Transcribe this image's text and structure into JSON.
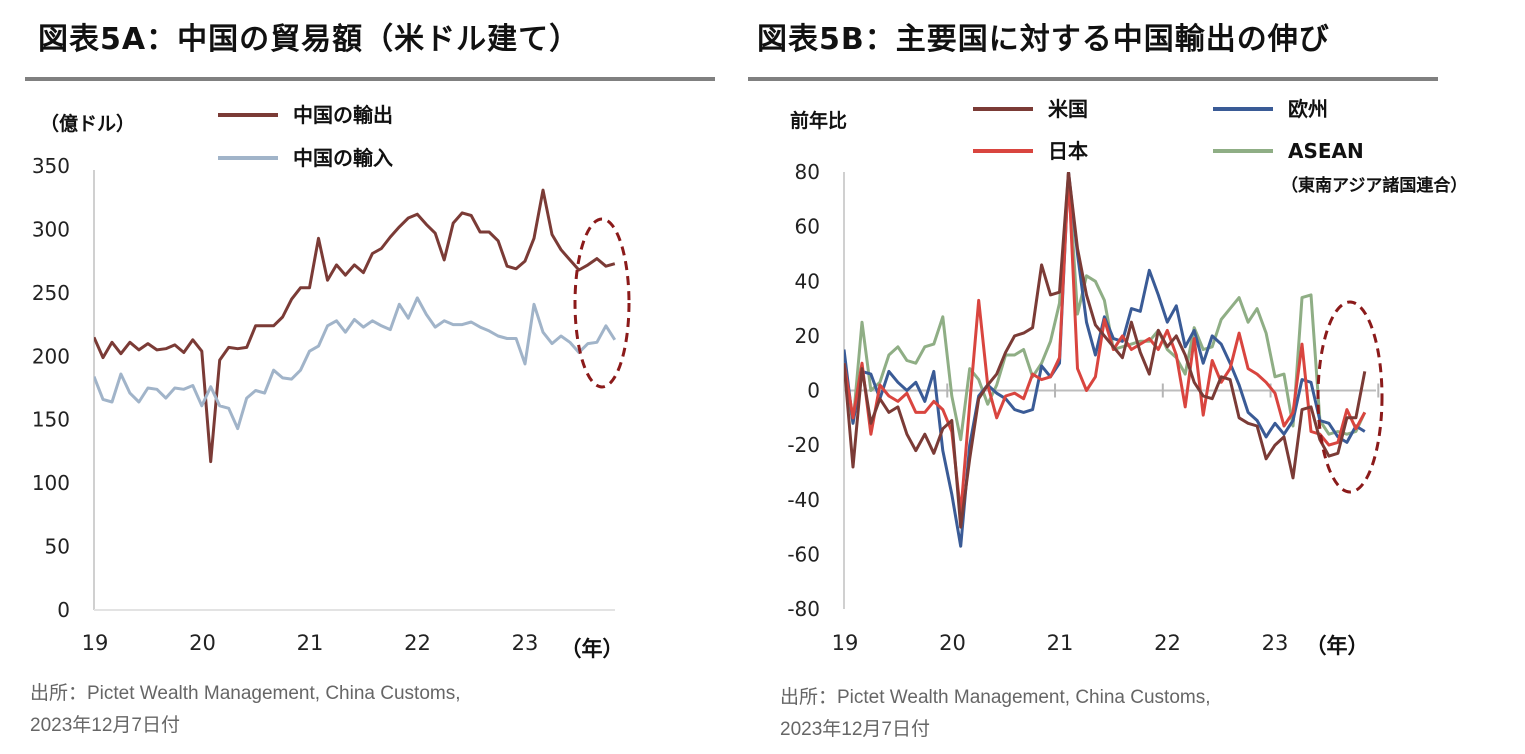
{
  "panels": {
    "a": {
      "title": "図表5A：中国の貿易額（米ドル建て）",
      "source_line1": "出所：Pictet Wealth Management, China Customs,",
      "source_line2": "2023年12月7日付"
    },
    "b": {
      "title": "図表5B：主要国に対する中国輸出の伸び",
      "source_line1": "出所：Pictet Wealth Management, China Customs,",
      "source_line2": "2023年12月7日付"
    }
  },
  "chart_data": [
    {
      "type": "line",
      "title": "図表5A：中国の貿易額（米ドル建て）",
      "ylabel": "（億ドル）",
      "xlabel": "（年）",
      "ylim": [
        0,
        350
      ],
      "yticks": [
        0,
        50,
        100,
        150,
        200,
        250,
        300,
        350
      ],
      "xticks": [
        "19",
        "20",
        "21",
        "22",
        "23"
      ],
      "x_start": "2019-01",
      "x_step": "month",
      "grid": false,
      "legend_position": "top",
      "highlight": "dashed ellipse around latest months",
      "series": [
        {
          "name": "中国の輸出",
          "color": "#7b3b36",
          "values": [
            215,
            199,
            211,
            202,
            211,
            205,
            210,
            205,
            206,
            209,
            203,
            213,
            204,
            117,
            197,
            207,
            206,
            207,
            224,
            224,
            224,
            231,
            245,
            254,
            254,
            293,
            260,
            272,
            264,
            272,
            266,
            281,
            285,
            294,
            302,
            309,
            312,
            304,
            297,
            276,
            305,
            313,
            311,
            298,
            298,
            291,
            271,
            269,
            275,
            293,
            331,
            296,
            284,
            276,
            268,
            272,
            277,
            271,
            273
          ]
        },
        {
          "name": "中国の輸入",
          "color": "#a1b4c9",
          "values": [
            184,
            166,
            164,
            186,
            171,
            164,
            175,
            174,
            167,
            175,
            174,
            177,
            161,
            176,
            161,
            159,
            143,
            167,
            173,
            171,
            189,
            183,
            182,
            189,
            204,
            208,
            224,
            228,
            219,
            229,
            223,
            228,
            224,
            221,
            241,
            230,
            246,
            233,
            223,
            228,
            225,
            225,
            227,
            223,
            220,
            216,
            214,
            214,
            194,
            241,
            219,
            210,
            216,
            211,
            203,
            210,
            211,
            224,
            213
          ]
        }
      ]
    },
    {
      "type": "line",
      "title": "図表5B：主要国に対する中国輸出の伸び",
      "ylabel": "前年比",
      "xlabel": "（年）",
      "ylim": [
        -80,
        80
      ],
      "yticks": [
        -80,
        -60,
        -40,
        -20,
        0,
        20,
        40,
        60,
        80
      ],
      "xticks": [
        "19",
        "20",
        "21",
        "22",
        "23"
      ],
      "x_start": "2019-01",
      "x_step": "month",
      "grid": false,
      "legend_position": "top",
      "highlight": "dashed ellipse around latest months",
      "series": [
        {
          "name": "米国",
          "color": "#7b3b36",
          "values": [
            10,
            -28,
            8,
            -12,
            -3,
            -8,
            -6,
            -16,
            -22,
            -16,
            -23,
            -14,
            -11,
            -50,
            -25,
            -3,
            2,
            6,
            14,
            20,
            21,
            23,
            46,
            35,
            36,
            80,
            52,
            35,
            24,
            20,
            16,
            12,
            25,
            14,
            6,
            22,
            16,
            20,
            13,
            3,
            -2,
            -3,
            5,
            4,
            -10,
            -12,
            -13,
            -25,
            -20,
            -17,
            -32,
            -7,
            -6,
            -18,
            -24,
            -23,
            -10,
            -10,
            7
          ]
        },
        {
          "name": "欧州",
          "color": "#3a5b96",
          "values": [
            15,
            -12,
            7,
            6,
            -3,
            7,
            3,
            0,
            3,
            -4,
            7,
            -22,
            -38,
            -57,
            -20,
            -2,
            2,
            -1,
            -3,
            -7,
            -8,
            -7,
            9,
            5,
            10,
            80,
            50,
            25,
            13,
            27,
            19,
            18,
            30,
            29,
            44,
            35,
            25,
            31,
            16,
            22,
            10,
            20,
            17,
            10,
            2,
            -8,
            -11,
            -17,
            -12,
            -16,
            -11,
            4,
            3,
            -11,
            -12,
            -17,
            -19,
            -13,
            -15
          ]
        },
        {
          "name": "日本",
          "color": "#d9453f",
          "values": [
            10,
            -10,
            10,
            -16,
            2,
            -2,
            -4,
            -1,
            -8,
            -8,
            -4,
            -7,
            -15,
            -45,
            -5,
            33,
            2,
            -10,
            -2,
            -1,
            -3,
            6,
            4,
            5,
            12,
            80,
            8,
            0,
            5,
            26,
            15,
            20,
            15,
            17,
            19,
            15,
            22,
            13,
            -6,
            19,
            -9,
            11,
            3,
            8,
            21,
            8,
            6,
            3,
            -1,
            -13,
            -8,
            17,
            -15,
            -16,
            -20,
            -19,
            -7,
            -14,
            -8
          ]
        },
        {
          "name": "ASEAN（東南アジア諸国連合）",
          "color": "#8fae85",
          "values": [
            8,
            -12,
            25,
            0,
            3,
            13,
            16,
            11,
            10,
            16,
            17,
            27,
            -2,
            -18,
            8,
            4,
            -5,
            2,
            13,
            13,
            15,
            5,
            10,
            18,
            32,
            80,
            28,
            42,
            40,
            33,
            15,
            16,
            17,
            18,
            18,
            22,
            15,
            12,
            6,
            23,
            15,
            16,
            26,
            30,
            34,
            25,
            30,
            21,
            5,
            6,
            -13,
            34,
            35,
            -11,
            -16,
            -15,
            -16,
            -15,
            -8
          ]
        }
      ]
    }
  ]
}
